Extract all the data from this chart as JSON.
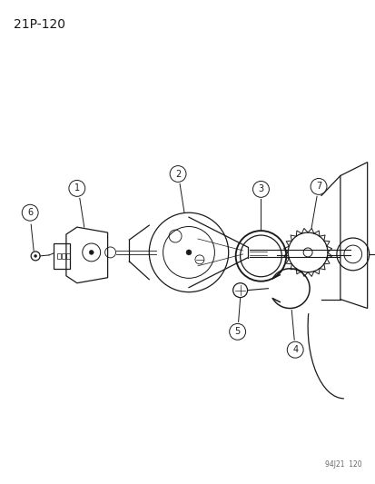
{
  "title_label": "21P-120",
  "watermark": "94J21  120",
  "bg_color": "#ffffff",
  "line_color": "#1a1a1a",
  "fig_width": 4.14,
  "fig_height": 5.33,
  "dpi": 100
}
